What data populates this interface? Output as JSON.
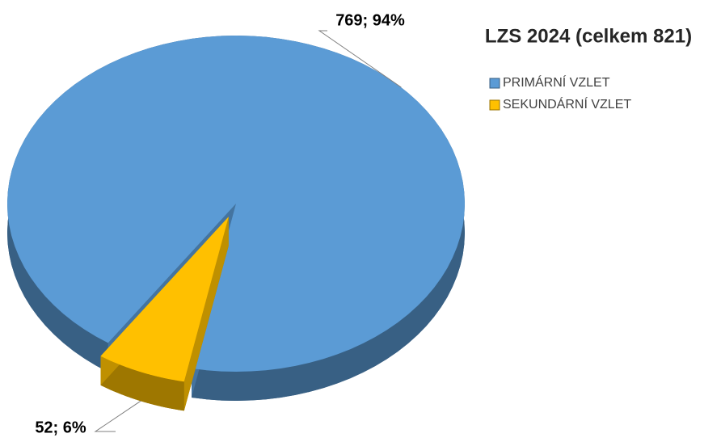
{
  "chart_data": {
    "type": "pie",
    "title": "LZS 2024 (celkem 821)",
    "categories": [
      "PRIMÁRNÍ VZLET",
      "SEKUNDÁRNÍ VZLET"
    ],
    "values": [
      769,
      52
    ],
    "value_labels": [
      "769; 94%",
      "52; 6%"
    ],
    "colors": [
      "#5b9bd5",
      "#ffc000"
    ],
    "legend": "right"
  }
}
